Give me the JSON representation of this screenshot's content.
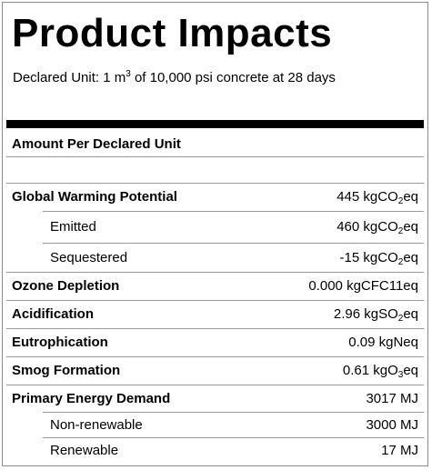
{
  "title": "Product Impacts",
  "declared_unit": {
    "prefix": "Declared Unit: 1 m",
    "superscript": "3",
    "suffix": " of 10,000 psi concrete at 28 days"
  },
  "section_heading": "Amount Per Declared Unit",
  "rows": [
    {
      "name": "Global Warming Potential",
      "value": "445 kgCO",
      "value_sub": "2",
      "value_tail": "eq"
    },
    {
      "name": "Emitted",
      "value": "460 kgCO",
      "value_sub": "2",
      "value_tail": "eq"
    },
    {
      "name": "Sequestered",
      "value": "-15 kgCO",
      "value_sub": "2",
      "value_tail": "eq"
    },
    {
      "name": "Ozone Depletion",
      "value": "0.000 kgCFC11eq",
      "value_sub": "",
      "value_tail": ""
    },
    {
      "name": "Acidification",
      "value": "2.96 kgSO",
      "value_sub": "2",
      "value_tail": "eq"
    },
    {
      "name": "Eutrophication",
      "value": "0.09 kgNeq",
      "value_sub": "",
      "value_tail": ""
    },
    {
      "name": "Smog Formation",
      "value": "0.61 kgO",
      "value_sub": "3",
      "value_tail": "eq"
    },
    {
      "name": "Primary Energy Demand",
      "value": "3017 MJ",
      "value_sub": "",
      "value_tail": ""
    },
    {
      "name": "Non-renewable",
      "value": "3000 MJ",
      "value_sub": "",
      "value_tail": ""
    },
    {
      "name": "Renewable",
      "value": "17 MJ",
      "value_sub": "",
      "value_tail": ""
    }
  ]
}
